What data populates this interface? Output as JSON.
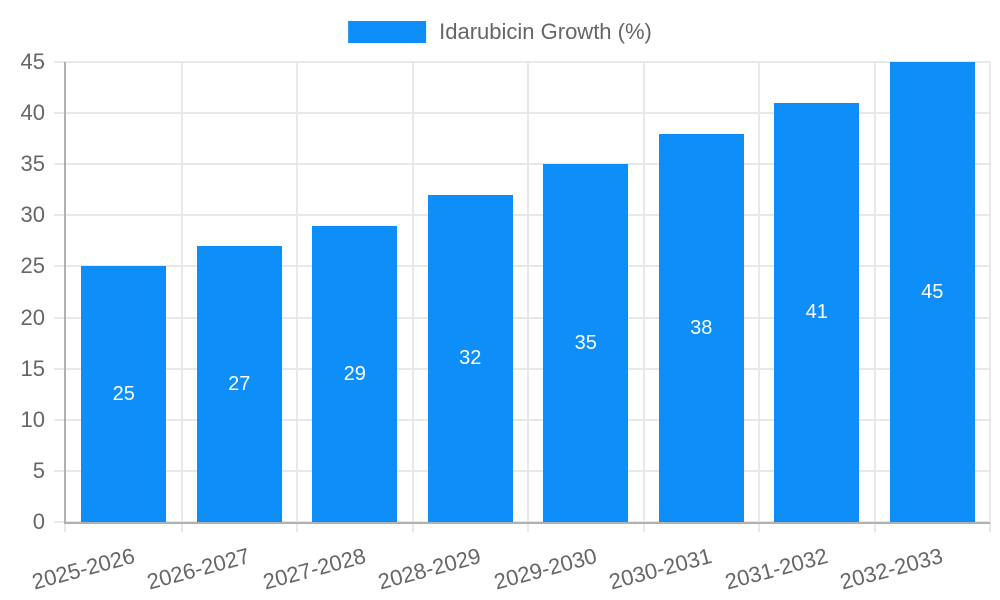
{
  "legend": {
    "label": "Idarubicin Growth (%)"
  },
  "chart_data": {
    "type": "bar",
    "title": "Idarubicin Growth (%)",
    "categories": [
      "2025-2026",
      "2026-2027",
      "2027-2028",
      "2028-2029",
      "2029-2030",
      "2030-2031",
      "2031-2032",
      "2032-2033"
    ],
    "values": [
      25,
      27,
      29,
      32,
      35,
      38,
      41,
      45
    ],
    "value_labels": [
      "25",
      "27",
      "29",
      "32",
      "35",
      "38",
      "41",
      "45"
    ],
    "value_label_position": "inside-center",
    "xlabel": "",
    "ylabel": "",
    "ylim": [
      0,
      45
    ],
    "yticks": [
      0,
      5,
      10,
      15,
      20,
      25,
      30,
      35,
      40,
      45
    ],
    "grid": true,
    "legend_position": "top-center",
    "x_tick_rotation_deg": -15,
    "colors": {
      "bar": "#0d8ef8",
      "value_label": "#ffffff",
      "tick_label": "#666666",
      "grid": "#e8e8e8",
      "axis": "#b0b0b0",
      "background": "#ffffff"
    }
  }
}
